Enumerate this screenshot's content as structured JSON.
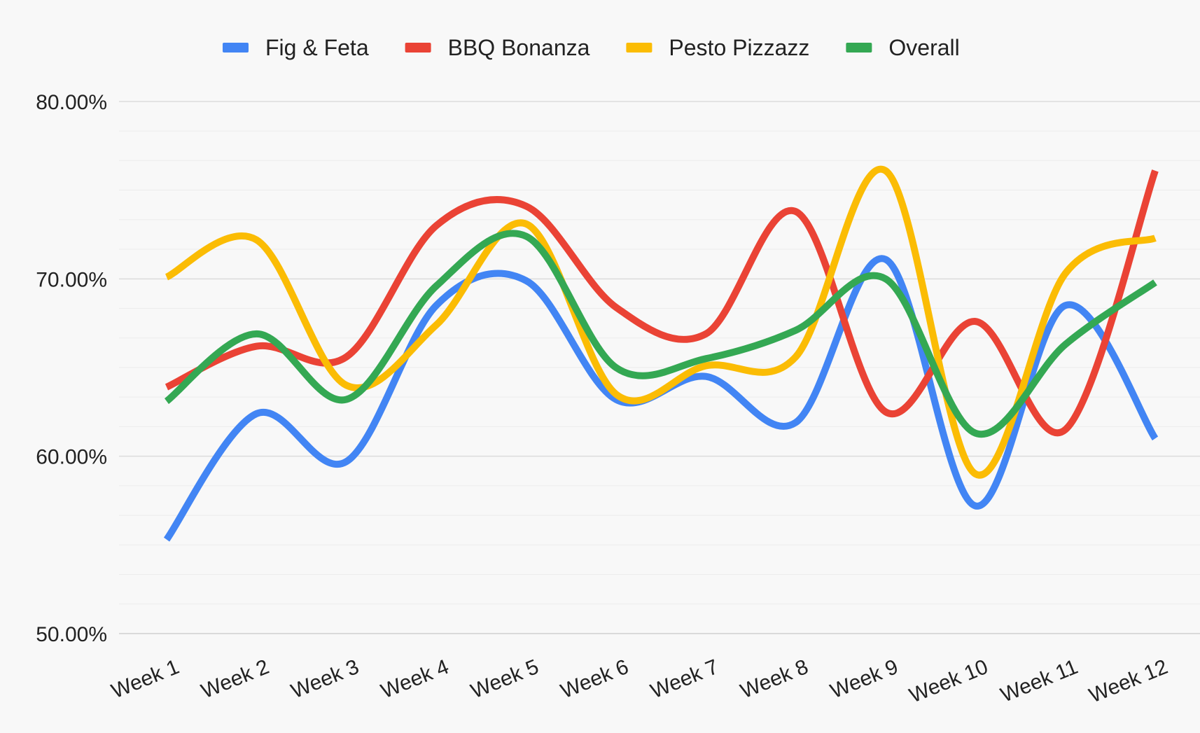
{
  "chart_data": {
    "type": "line",
    "title": "",
    "xlabel": "",
    "ylabel": "",
    "ylim": [
      50,
      80
    ],
    "yticks": [
      {
        "value": 50,
        "label": "50.00%"
      },
      {
        "value": 60,
        "label": "60.00%"
      },
      {
        "value": 70,
        "label": "70.00%"
      },
      {
        "value": 80,
        "label": "80.00%"
      }
    ],
    "minor_grid_step": 1.667,
    "grid": true,
    "smooth": true,
    "legend_position": "top-center",
    "categories": [
      "Week 1",
      "Week 2",
      "Week 3",
      "Week 4",
      "Week 5",
      "Week 6",
      "Week 7",
      "Week 8",
      "Week 9",
      "Week 10",
      "Week 11",
      "Week 12"
    ],
    "series": [
      {
        "name": "Fig & Feta",
        "color": "#4285F4",
        "values": [
          55.3,
          62.4,
          59.7,
          68.5,
          69.9,
          63.2,
          64.5,
          61.9,
          71.1,
          57.2,
          68.5,
          61.0
        ]
      },
      {
        "name": "BBQ Bonanza",
        "color": "#EA4335",
        "values": [
          63.9,
          66.2,
          65.6,
          73.0,
          74.1,
          68.4,
          66.9,
          73.8,
          62.5,
          67.6,
          61.5,
          76.1
        ]
      },
      {
        "name": "Pesto Pizzazz",
        "color": "#FBBC04",
        "values": [
          70.1,
          72.2,
          64.0,
          67.4,
          73.1,
          63.5,
          65.1,
          65.6,
          76.1,
          59.0,
          70.3,
          72.3
        ]
      },
      {
        "name": "Overall",
        "color": "#34A853",
        "values": [
          63.1,
          66.9,
          63.2,
          69.6,
          72.4,
          65.0,
          65.5,
          67.1,
          70.0,
          61.3,
          66.3,
          69.8
        ]
      }
    ]
  }
}
